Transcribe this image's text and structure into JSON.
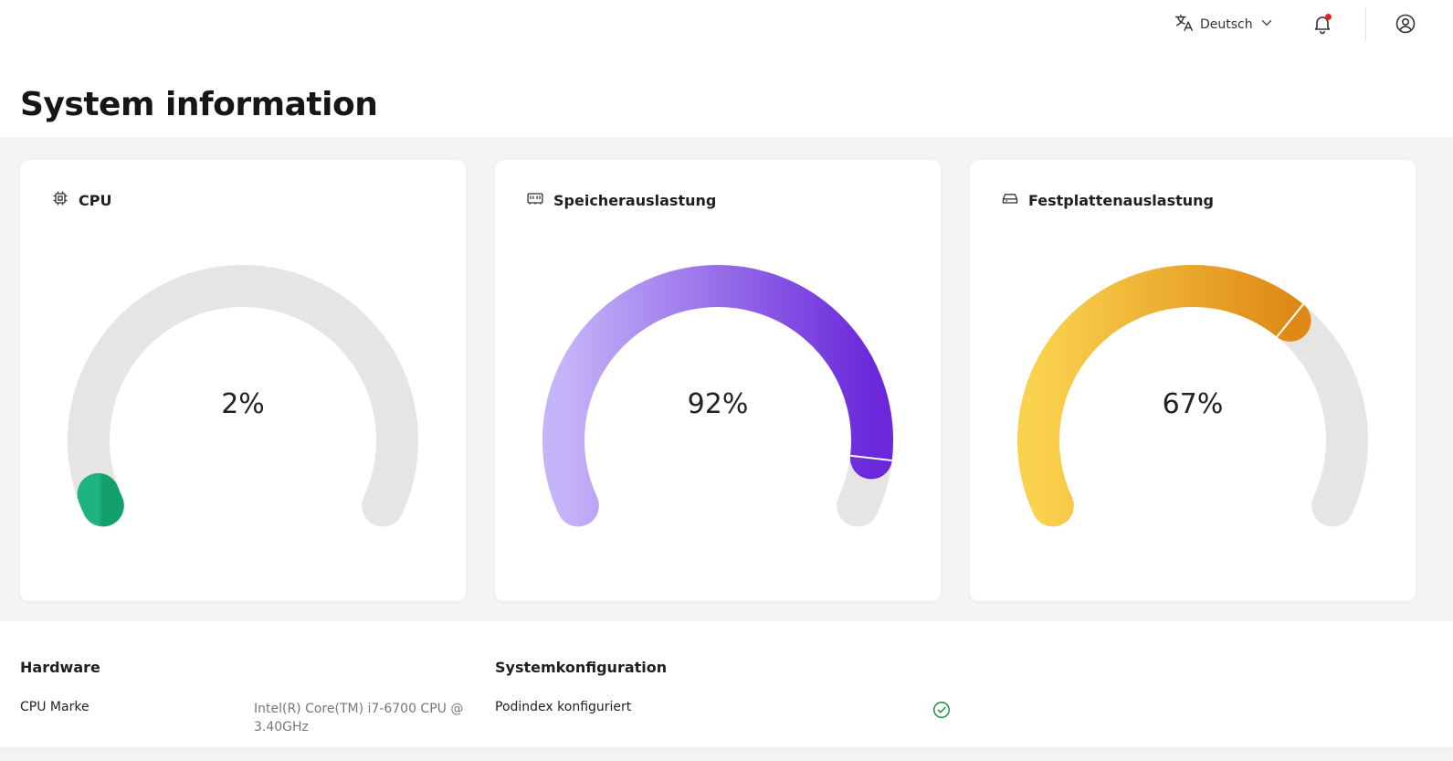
{
  "header": {
    "language": "Deutsch",
    "has_notification": true
  },
  "page_title": "System information",
  "gauges": [
    {
      "label": "CPU",
      "icon": "chip-icon",
      "percent_text": "2%",
      "value": 2,
      "gradient": [
        "#1fb37f",
        "#14a06c"
      ]
    },
    {
      "label": "Speicherauslastung",
      "icon": "memory-icon",
      "percent_text": "92%",
      "value": 92,
      "gradient": [
        "#c4b4f8",
        "#6a28da"
      ]
    },
    {
      "label": "Festplattenauslastung",
      "icon": "hard-drive-icon",
      "percent_text": "67%",
      "value": 67,
      "gradient": [
        "#fad24e",
        "#df8a16"
      ]
    }
  ],
  "track_color": "#e6e5e3",
  "sections": {
    "hardware": {
      "title": "Hardware",
      "rows": [
        {
          "label": "CPU Marke",
          "value": "Intel(R) Core(TM) i7-6700 CPU @ 3.40GHz"
        }
      ]
    },
    "systemkonfiguration": {
      "title": "Systemkonfiguration",
      "rows": [
        {
          "label": "Podindex konfiguriert",
          "status": "ok"
        }
      ]
    }
  },
  "status_color_ok": "#1e8a3c"
}
